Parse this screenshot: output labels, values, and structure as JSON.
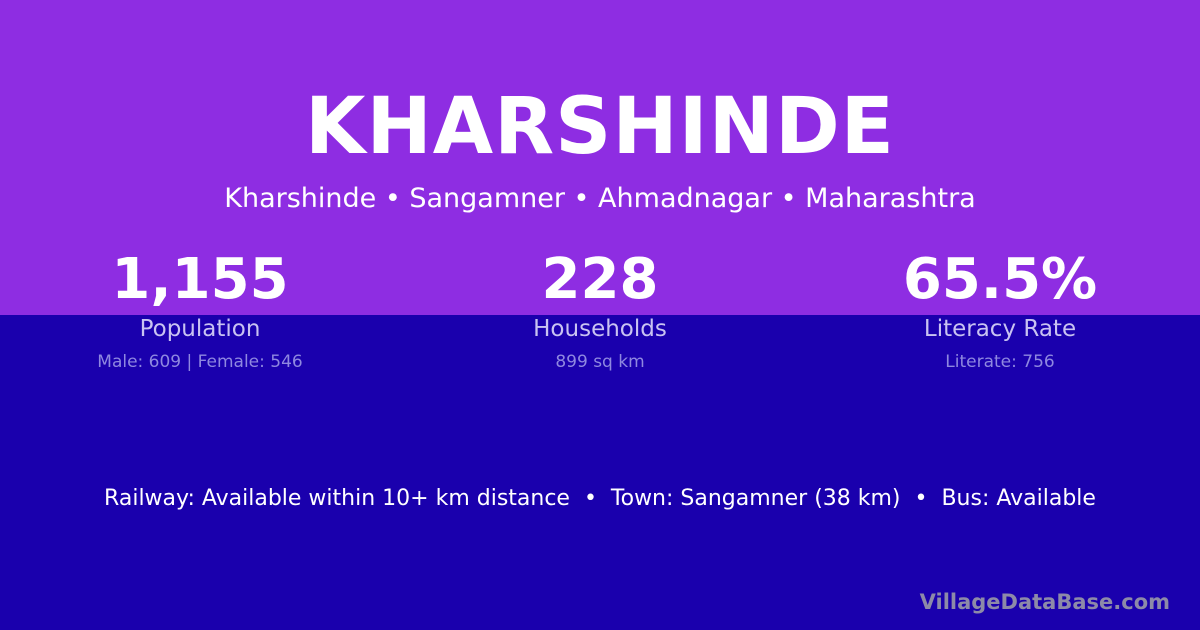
{
  "colors": {
    "top_background": "#8e2de2",
    "bottom_background": "#1a00ad"
  },
  "header": {
    "title": "KHARSHINDE",
    "breadcrumb": "Kharshinde • Sangamner • Ahmadnagar • Maharashtra"
  },
  "stats": [
    {
      "value": "1,155",
      "label": "Population",
      "detail": "Male: 609 | Female: 546"
    },
    {
      "value": "228",
      "label": "Households",
      "detail": "899 sq km"
    },
    {
      "value": "65.5%",
      "label": "Literacy Rate",
      "detail": "Literate: 756"
    }
  ],
  "info": "Railway: Available within 10+ km distance  •  Town: Sangamner (38 km)  •  Bus: Available",
  "brand": "VillageDataBase.com"
}
